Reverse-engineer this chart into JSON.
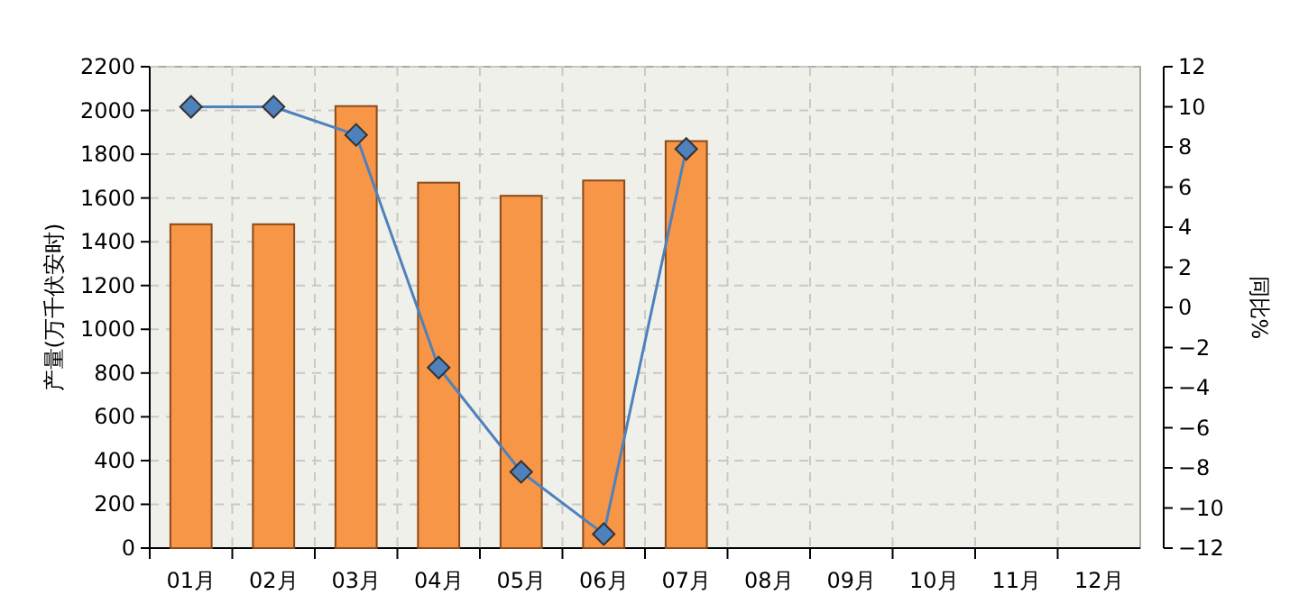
{
  "chart_data": {
    "type": "bar",
    "ylabel": "产量(万千伏安时)",
    "y2label": "同比%",
    "categories": [
      "01月",
      "02月",
      "03月",
      "04月",
      "05月",
      "06月",
      "07月",
      "08月",
      "09月",
      "10月",
      "11月",
      "12月"
    ],
    "series": [
      {
        "color": "#f79646",
        "values": [
          1480,
          1480,
          2020,
          1670,
          1610,
          1680,
          1860,
          null,
          null,
          null,
          null,
          null
        ]
      },
      {
        "type": "line",
        "axis": "y2",
        "color": "#4f81bd",
        "marker": "diamond",
        "values": [
          10.0,
          10.0,
          8.6,
          -3.0,
          -8.2,
          -11.3,
          7.9,
          null,
          null,
          null,
          null,
          null
        ]
      }
    ],
    "ylim": [
      0,
      2200
    ],
    "yticks": [
      0,
      200,
      400,
      600,
      800,
      1000,
      1200,
      1400,
      1600,
      1800,
      2000,
      2200
    ],
    "y2lim": [
      -12,
      12
    ],
    "y2ticks": [
      -12,
      -10,
      -8,
      -6,
      -4,
      -2,
      0,
      2,
      4,
      6,
      8,
      10,
      12
    ],
    "grid": true
  }
}
